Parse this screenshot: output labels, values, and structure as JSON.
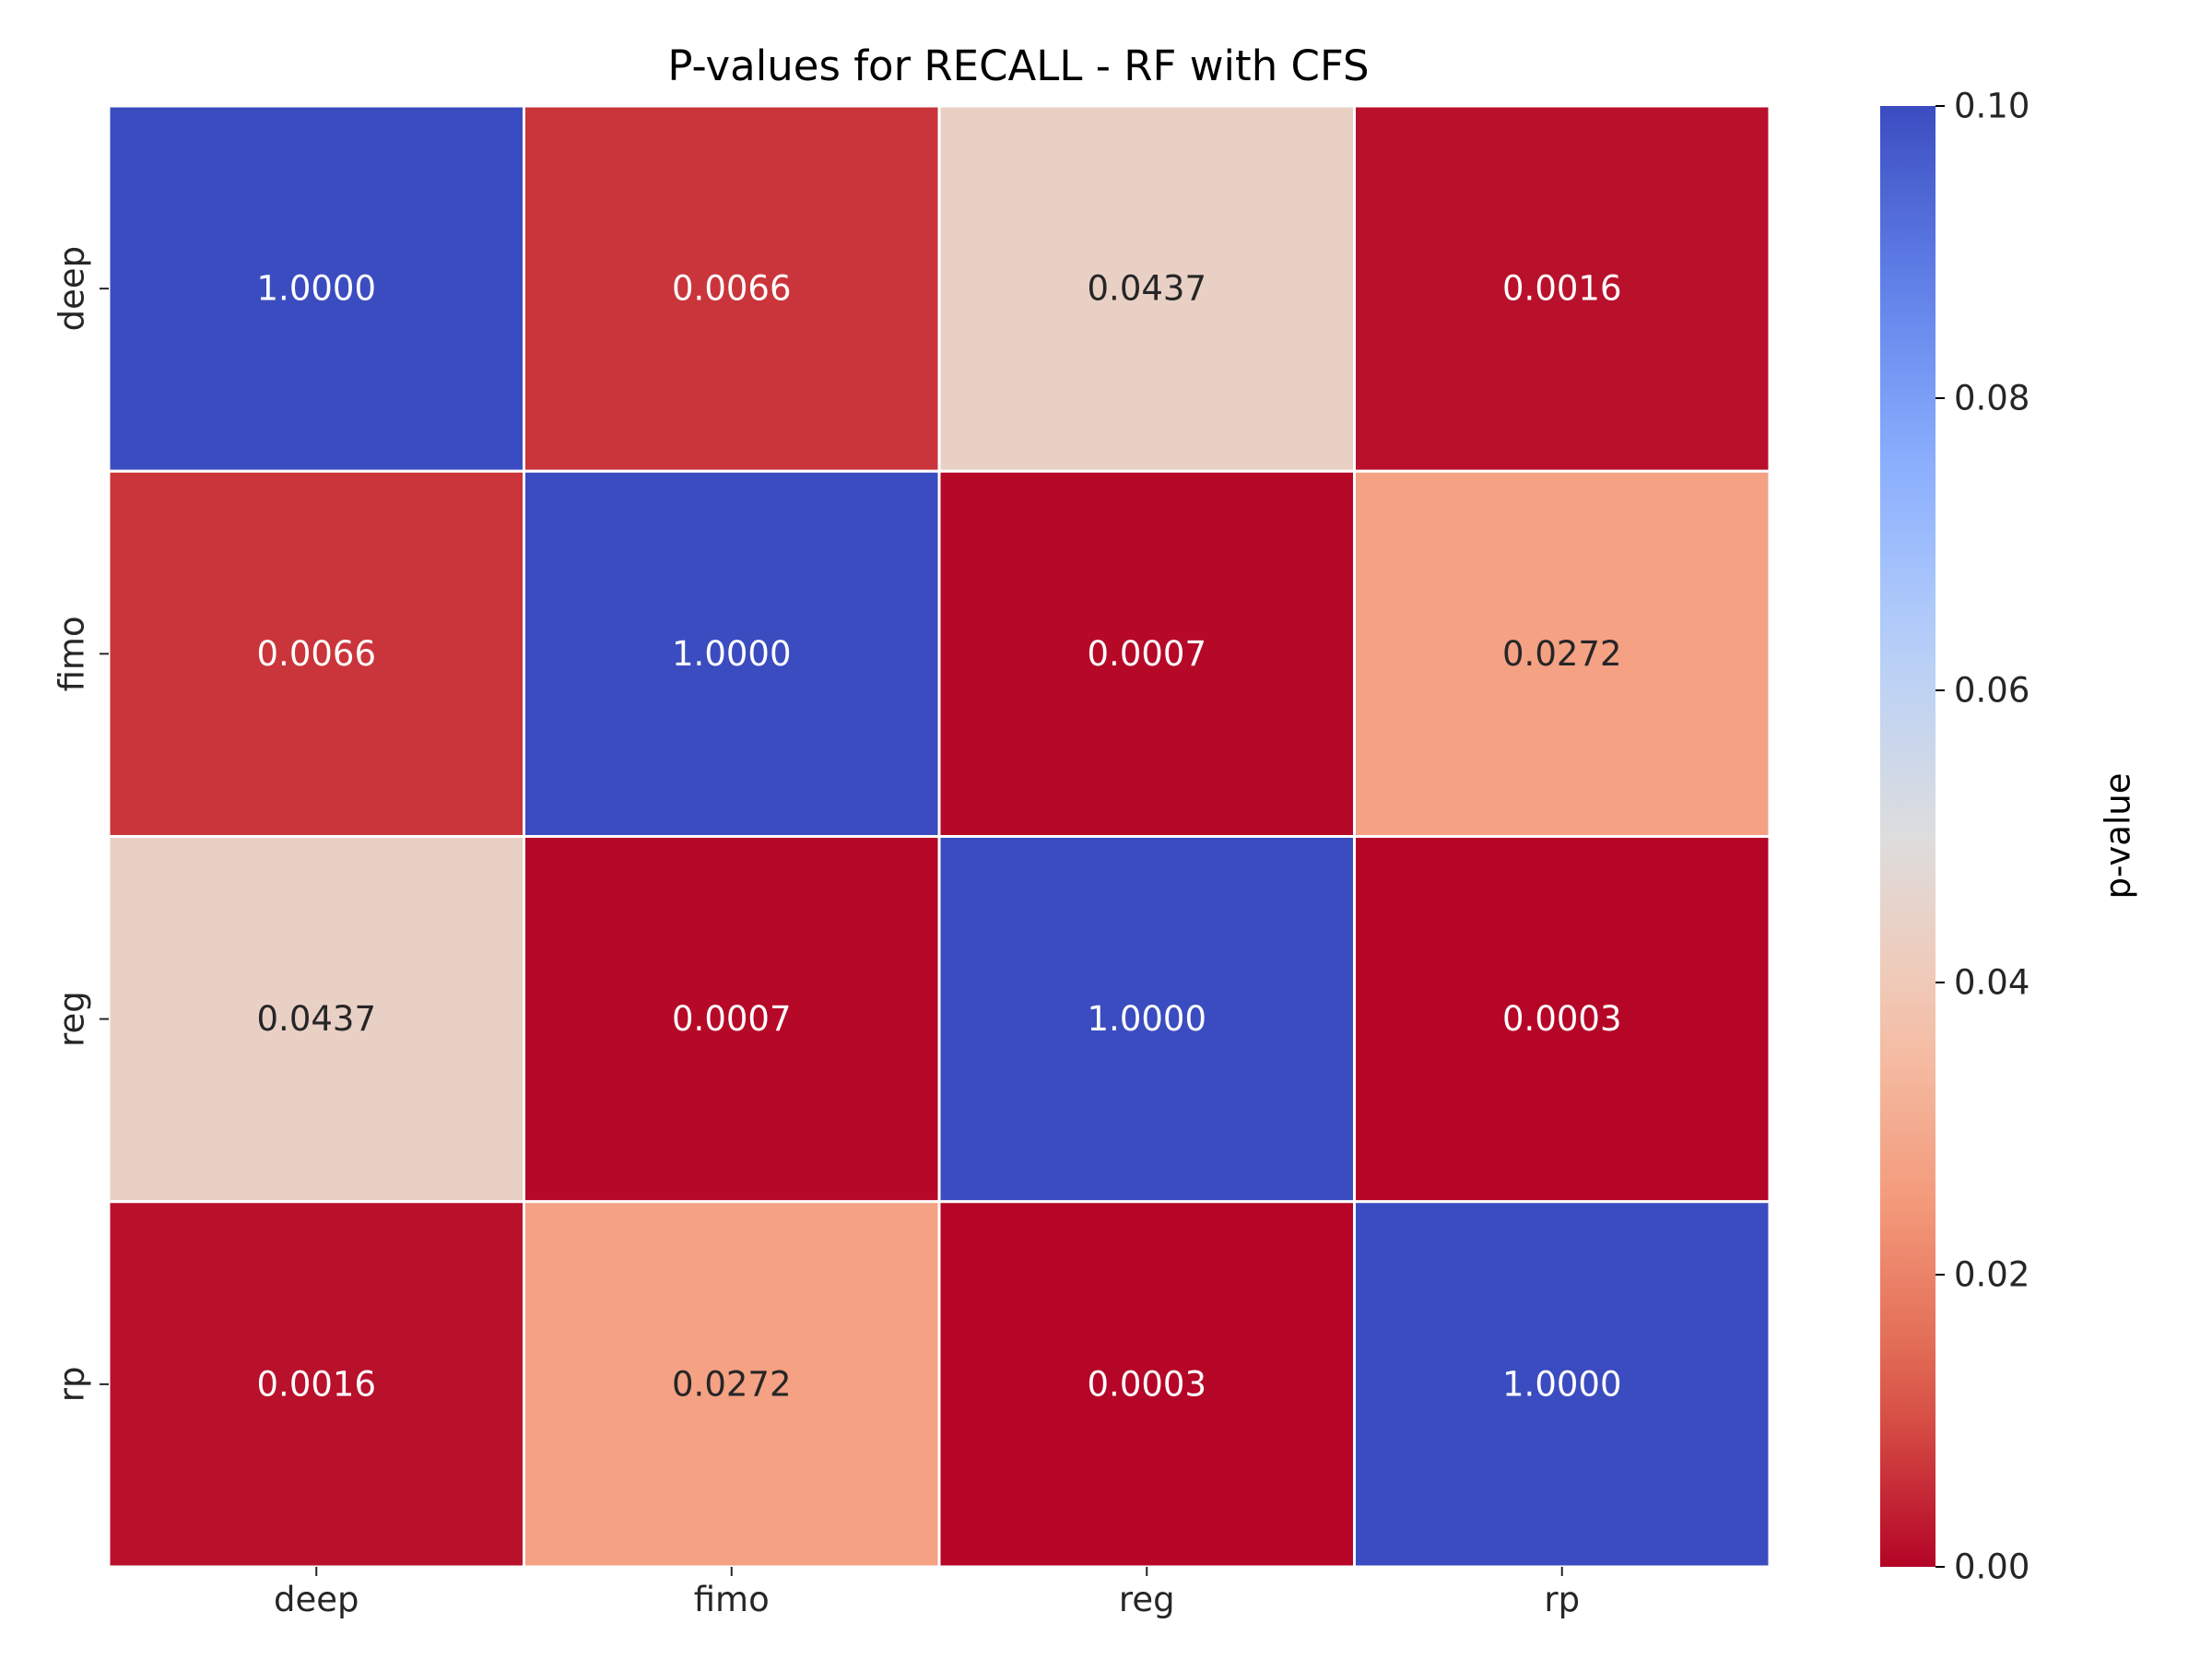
{
  "chart_data": {
    "type": "heatmap",
    "title": "P-values for RECALL - RF with CFS",
    "x_categories": [
      "deep",
      "fimo",
      "reg",
      "rp"
    ],
    "y_categories": [
      "deep",
      "fimo",
      "reg",
      "rp"
    ],
    "values": [
      [
        1.0,
        0.0066,
        0.0437,
        0.0016
      ],
      [
        0.0066,
        1.0,
        0.0007,
        0.0272
      ],
      [
        0.0437,
        0.0007,
        1.0,
        0.0003
      ],
      [
        0.0016,
        0.0272,
        0.0003,
        1.0
      ]
    ],
    "annotations": [
      [
        "1.0000",
        "0.0066",
        "0.0437",
        "0.0016"
      ],
      [
        "0.0066",
        "1.0000",
        "0.0007",
        "0.0272"
      ],
      [
        "0.0437",
        "0.0007",
        "1.0000",
        "0.0003"
      ],
      [
        "0.0016",
        "0.0272",
        "0.0003",
        "1.0000"
      ]
    ],
    "colormap": "coolwarm_r",
    "vmin": 0.0,
    "vmax": 0.1,
    "colorbar": {
      "label": "p-value",
      "ticks": [
        "0.00",
        "0.02",
        "0.04",
        "0.06",
        "0.08",
        "0.10"
      ],
      "tick_values": [
        0.0,
        0.02,
        0.04,
        0.06,
        0.08,
        0.1
      ]
    },
    "cell_border_color": "#ffffff",
    "annotation_dark_text": "#262626",
    "annotation_light_text": "#ffffff"
  }
}
